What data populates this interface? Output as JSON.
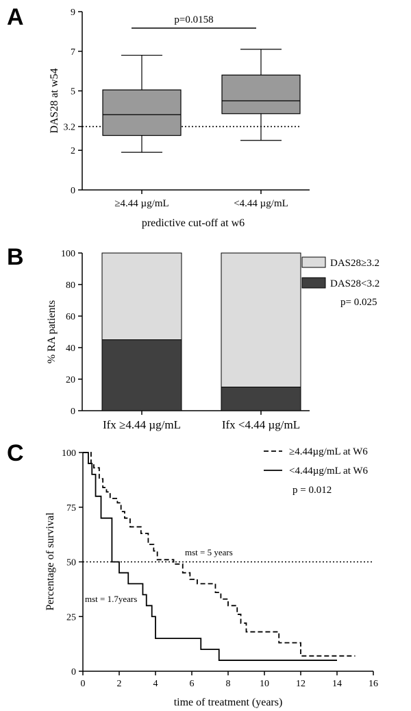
{
  "chart_data": [
    {
      "panel": "A",
      "type": "box",
      "ylabel": "DAS28 at w54",
      "xlabel": "predictive cut-off at w6",
      "ylim": [
        0,
        9
      ],
      "yticks": [
        0,
        2,
        3.2,
        5,
        7,
        9
      ],
      "ytick_labels": [
        "0",
        "2",
        "3.2",
        "5",
        "7",
        "9"
      ],
      "categories": [
        "≥4.44 µg/mL",
        "<4.44 µg/mL"
      ],
      "boxes": [
        {
          "min": 1.9,
          "q1": 2.75,
          "median": 3.8,
          "q3": 5.05,
          "max": 6.8
        },
        {
          "min": 2.5,
          "q1": 3.85,
          "median": 4.5,
          "q3": 5.8,
          "max": 7.1
        }
      ],
      "reference_line": 3.2,
      "annotation": "p=0.0158",
      "box_color": "#9a9a9a"
    },
    {
      "panel": "B",
      "type": "bar",
      "stacked": true,
      "ylabel": "% RA patients",
      "ylim": [
        0,
        100
      ],
      "yticks": [
        0,
        20,
        40,
        60,
        80,
        100
      ],
      "categories": [
        "Ifx ≥4.44 µg/mL",
        "Ifx <4.44 µg/mL"
      ],
      "series": [
        {
          "name": "DAS28<3.2",
          "values": [
            45,
            15
          ],
          "color": "#404040"
        },
        {
          "name": "DAS28≥3.2",
          "values": [
            55,
            85
          ],
          "color": "#dcdcdc"
        }
      ],
      "legend": [
        "DAS28≥3.2",
        "DAS28<3.2"
      ],
      "legend_position": "top-right",
      "annotation": "p= 0.025"
    },
    {
      "panel": "C",
      "type": "line",
      "step": true,
      "ylabel": "Percentage of survival",
      "xlabel": "time of treatment (years)",
      "xlim": [
        0,
        16
      ],
      "ylim": [
        0,
        100
      ],
      "xticks": [
        0,
        2,
        4,
        6,
        8,
        10,
        12,
        14,
        16
      ],
      "yticks": [
        0,
        25,
        50,
        75,
        100
      ],
      "reference_line": 50,
      "series": [
        {
          "name": "≥4.44µg/mL at W6",
          "style": "dashed",
          "x": [
            0,
            0.45,
            0.6,
            0.9,
            1.1,
            1.3,
            1.5,
            1.9,
            2.1,
            2.3,
            2.6,
            3.2,
            3.6,
            3.9,
            4.1,
            5.0,
            5.5,
            5.9,
            6.3,
            7.3,
            7.6,
            8.0,
            8.5,
            8.7,
            9.0,
            10.8,
            12.0,
            15.0
          ],
          "y": [
            100,
            95,
            93,
            88,
            84,
            82,
            79,
            77,
            73,
            70,
            66,
            63,
            58,
            55,
            51,
            49,
            45,
            42,
            40,
            36,
            33,
            30,
            26,
            22,
            18,
            13,
            7,
            7
          ]
        },
        {
          "name": "<4.44µg/mL at W6",
          "style": "solid",
          "x": [
            0,
            0.3,
            0.5,
            0.7,
            1.0,
            1.6,
            2.0,
            2.5,
            3.3,
            3.5,
            3.8,
            4.0,
            6.5,
            7.5,
            14.0
          ],
          "y": [
            100,
            95,
            90,
            80,
            70,
            50,
            45,
            40,
            35,
            30,
            25,
            15,
            10,
            5,
            5
          ]
        }
      ],
      "legend_position": "top-right",
      "annotations": [
        "mst = 5 years",
        "mst = 1.7years",
        "p = 0.012"
      ]
    }
  ]
}
